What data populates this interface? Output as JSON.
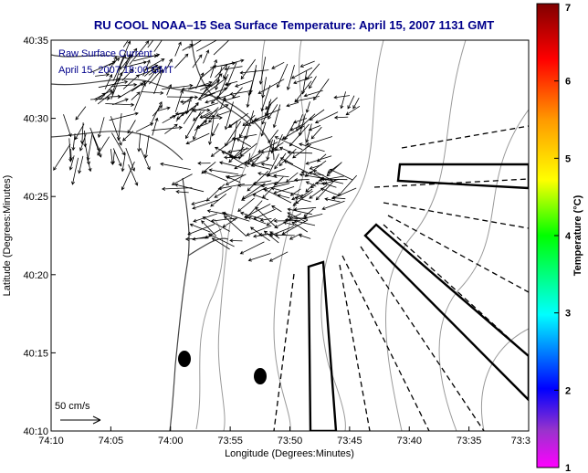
{
  "chart_data": {
    "type": "vector-field",
    "title": "RU COOL  NOAA–15  Sea Surface Temperature:  April 15, 2007 1131 GMT",
    "xlabel": "Longitude (Degrees:Minutes)",
    "ylabel": "Latitude (Degrees:Minutes)",
    "x_ticks": [
      "74:10",
      "74:05",
      "74:00",
      "73:55",
      "73:50",
      "73:45",
      "73:40",
      "73:35",
      "73:3"
    ],
    "y_ticks": [
      "40:35",
      "40:30",
      "40:25",
      "40:20",
      "40:15",
      "40:10"
    ],
    "annotations": [
      "Raw Surface Current",
      "April 15, 2007 18:00 GMT"
    ],
    "scale_label": "50 cm/s",
    "colorbar": {
      "label": "Temperature (°C)",
      "range": [
        1,
        7
      ],
      "ticks": [
        "1",
        "2",
        "3",
        "4",
        "5",
        "6",
        "7"
      ]
    },
    "grid": false
  },
  "colors": {
    "title": "#00008b",
    "annotation": "#00008b",
    "land_outline": "#333333",
    "bathymetry": "#999999",
    "vectors": "#000000"
  }
}
